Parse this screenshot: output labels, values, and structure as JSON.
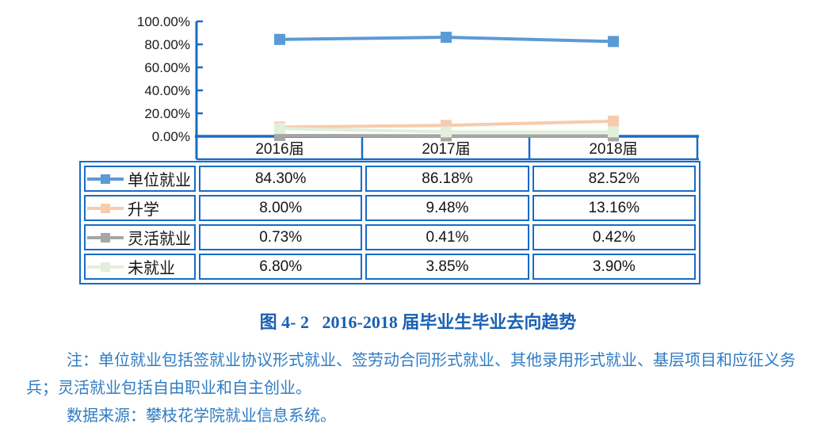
{
  "figure": {
    "title": "图 4- 2   2016-2018 届毕业生毕业去向趋势",
    "note_line1": "注：单位就业包括签就业协议形式就业、签劳动合同形式就业、其他录用形式就业、基层项目和应征义务",
    "note_line2": "兵；灵活就业包括自由职业和自主创业。",
    "note_line3": "数据来源：攀枝花学院就业信息系统。"
  },
  "colors": {
    "axis_and_border": "#1A6BC4",
    "title_text": "#1A60B3",
    "note_text": "#2F7CC4",
    "tick_label_text": "#1a1a1a"
  },
  "chart_data": {
    "type": "line",
    "title": "2016-2018 届毕业生毕业去向趋势",
    "categories": [
      "2016届",
      "2017届",
      "2018届"
    ],
    "y_ticks": [
      "0.00%",
      "20.00%",
      "40.00%",
      "60.00%",
      "80.00%",
      "100.00%"
    ],
    "y_tick_values": [
      0,
      20,
      40,
      60,
      80,
      100
    ],
    "ylim": [
      0,
      100
    ],
    "grid": "off",
    "legend_position": "data-table-left-column",
    "marker": "square",
    "series": [
      {
        "name": "单位就业",
        "color": "#5B9BD5",
        "values": [
          84.3,
          86.18,
          82.52
        ],
        "values_display": [
          "84.30%",
          "86.18%",
          "82.52%"
        ]
      },
      {
        "name": "升学",
        "color": "#F8CBAD",
        "values": [
          8.0,
          9.48,
          13.16
        ],
        "values_display": [
          "8.00%",
          "9.48%",
          "13.16%"
        ]
      },
      {
        "name": "灵活就业",
        "color": "#A6A6A6",
        "values": [
          0.73,
          0.41,
          0.42
        ],
        "values_display": [
          "0.73%",
          "0.41%",
          "0.42%"
        ]
      },
      {
        "name": "未就业",
        "color": "#E2EFDA",
        "values": [
          6.8,
          3.85,
          3.9
        ],
        "values_display": [
          "6.80%",
          "3.85%",
          "3.90%"
        ]
      }
    ]
  }
}
